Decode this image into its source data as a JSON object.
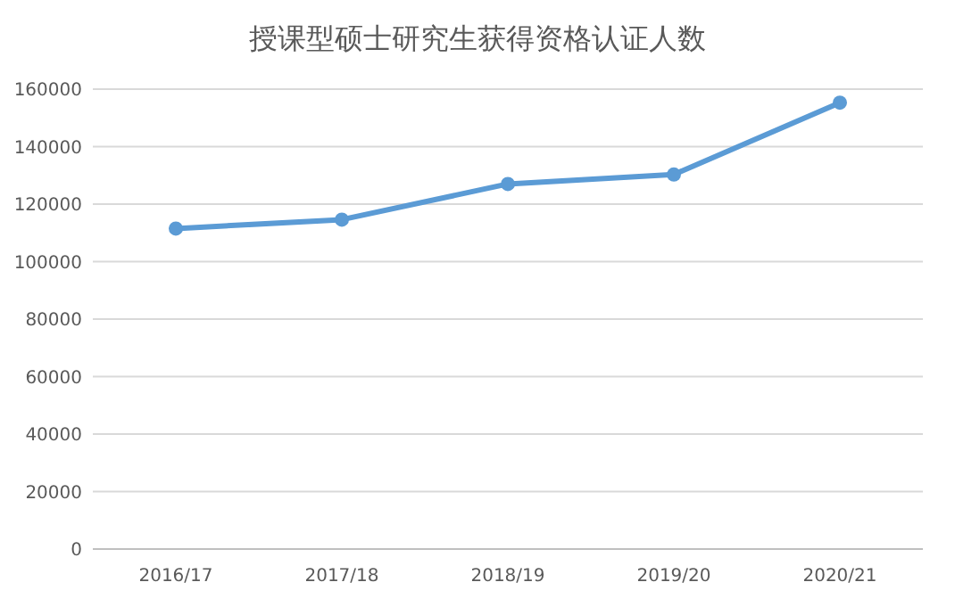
{
  "chart_data": {
    "type": "line",
    "title": "授课型硕士研究生获得资格认证人数",
    "categories": [
      "2016/17",
      "2017/18",
      "2018/19",
      "2019/20",
      "2020/21"
    ],
    "series": [
      {
        "color": "#5b9bd5",
        "values": [
          111500,
          114600,
          127000,
          130300,
          155300
        ]
      }
    ],
    "ylim": [
      0,
      160000
    ],
    "yticks": [
      0,
      20000,
      40000,
      60000,
      80000,
      100000,
      120000,
      140000,
      160000
    ],
    "grid": "y",
    "marker": "circle"
  }
}
